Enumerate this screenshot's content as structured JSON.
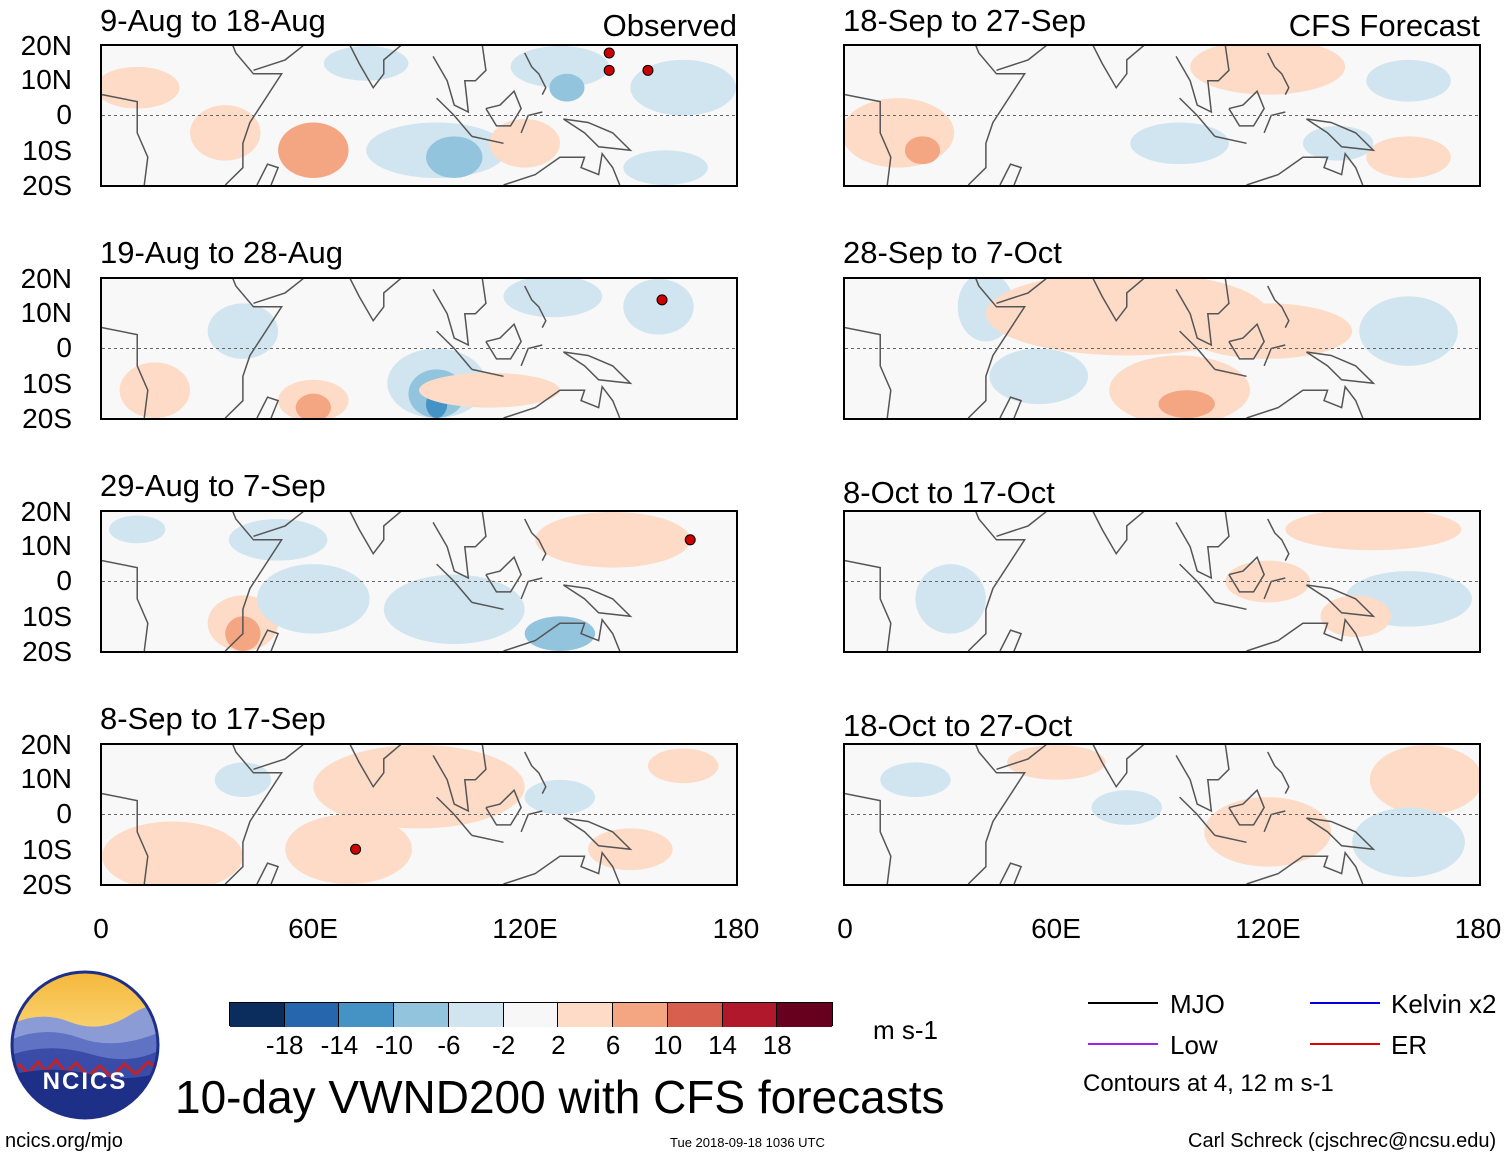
{
  "panels": [
    {
      "id": "obs1",
      "title": "9-Aug to 18-Aug",
      "corner": "Observed"
    },
    {
      "id": "obs2",
      "title": "19-Aug to 28-Aug",
      "corner": ""
    },
    {
      "id": "obs3",
      "title": "29-Aug to 7-Sep",
      "corner": ""
    },
    {
      "id": "obs4",
      "title": "8-Sep to 17-Sep",
      "corner": ""
    },
    {
      "id": "fc1",
      "title": "18-Sep to 27-Sep",
      "corner": "CFS Forecast"
    },
    {
      "id": "fc2",
      "title": "28-Sep to 7-Oct",
      "corner": ""
    },
    {
      "id": "fc3",
      "title": "8-Oct to 17-Oct",
      "corner": ""
    },
    {
      "id": "fc4",
      "title": "18-Oct to 27-Oct",
      "corner": ""
    }
  ],
  "axes": {
    "lat_labels": [
      "20N",
      "10N",
      "0",
      "10S",
      "20S"
    ],
    "lon_labels": [
      "0",
      "60E",
      "120E",
      "180"
    ]
  },
  "colorbar": {
    "unit": "m s-1",
    "colors": [
      "#0b2d5e",
      "#2566ad",
      "#4592c4",
      "#92c4de",
      "#d1e5f0",
      "#f7f7f7",
      "#fddbc7",
      "#f4a582",
      "#d6604d",
      "#b2182b",
      "#67001f"
    ],
    "ticks": [
      "-18",
      "-14",
      "-10",
      "-6",
      "-2",
      "2",
      "6",
      "10",
      "14",
      "18"
    ]
  },
  "legend": {
    "items": [
      {
        "label": "MJO",
        "color": "#000000"
      },
      {
        "label": "Kelvin x2",
        "color": "#0000dd"
      },
      {
        "label": "Low",
        "color": "#a020f0"
      },
      {
        "label": "ER",
        "color": "#dd0000"
      }
    ],
    "note": "Contours at 4, 12 m s-1"
  },
  "title": "10-day VWND200 with CFS forecasts",
  "logo_text": "NCICS",
  "footer": {
    "left": "ncics.org/mjo",
    "center": "Tue 2018-09-18 1036 UTC",
    "right": "Carl Schreck (cjschrec@ncsu.edu)"
  },
  "storms": [
    {
      "panel": "obs1",
      "lon": 144,
      "lat": 18
    },
    {
      "panel": "obs1",
      "lon": 144,
      "lat": 13
    },
    {
      "panel": "obs1",
      "lon": 155,
      "lat": 13
    },
    {
      "panel": "obs2",
      "lon": 159,
      "lat": 14
    },
    {
      "panel": "obs3",
      "lon": 167,
      "lat": 12
    },
    {
      "panel": "obs4",
      "lon": 72,
      "lat": -10
    }
  ]
}
